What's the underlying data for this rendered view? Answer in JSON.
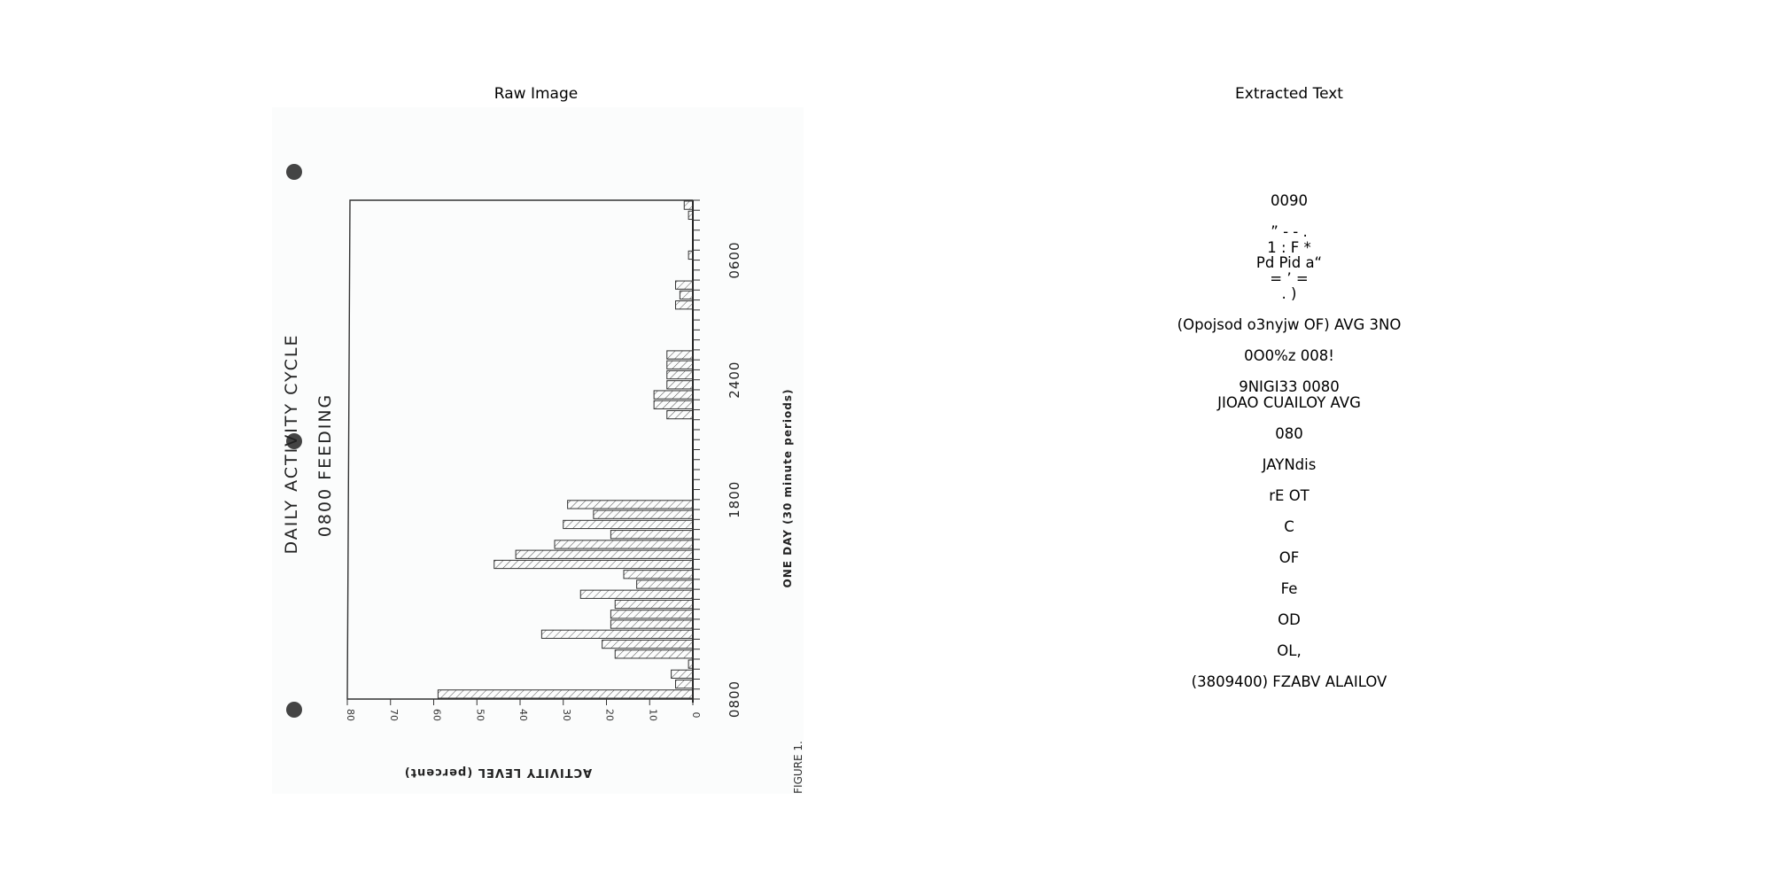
{
  "panels": {
    "left_title": "Raw Image",
    "right_title": "Extracted Text"
  },
  "scan": {
    "title_line1": "DAILY ACTIVITY CYCLE",
    "title_line2": "0800 FEEDING",
    "y_axis_label": "ACTIVITY LEVEL (percent)",
    "x_axis_label": "ONE DAY (30 minute periods)",
    "figure_label": "FIGURE 1.",
    "y_ticks": [
      "0",
      "10",
      "20",
      "30",
      "40",
      "50",
      "60",
      "70",
      "80"
    ],
    "x_ticks": [
      "0800",
      "1800",
      "2400",
      "0600"
    ]
  },
  "chart_data": {
    "type": "bar",
    "title": "DAILY ACTIVITY CYCLE 0800 FEEDING",
    "xlabel": "ONE DAY (30 minute periods)",
    "ylabel": "ACTIVITY LEVEL (percent)",
    "ylim": [
      0,
      80
    ],
    "x_tick_labels": [
      "0800",
      "1800",
      "2400",
      "0600"
    ],
    "values": [
      59,
      4,
      5,
      1,
      18,
      21,
      35,
      19,
      19,
      18,
      26,
      13,
      16,
      46,
      41,
      32,
      19,
      30,
      23,
      29,
      0,
      0,
      0,
      0,
      0,
      0,
      0,
      0,
      6,
      9,
      9,
      6,
      6,
      6,
      6,
      0,
      0,
      0,
      0,
      4,
      3,
      4,
      0,
      0,
      1,
      0,
      0,
      0,
      1,
      2
    ]
  },
  "ocr": {
    "lines": [
      "0090",
      "",
      "” - - .",
      "1 : F *",
      "Pd Pid a“",
      "= ’ =",
      ". )",
      "",
      "(Opojsod o3nyjw OF) AVG 3NO",
      "",
      "0O0%z 008!",
      "",
      "9NIGI33 0080",
      "JIOAO CUAILOY AVG",
      "",
      "080",
      "",
      "JAYNdis",
      "",
      "rE OT",
      "",
      "C",
      "",
      "OF",
      "",
      "Fe",
      "",
      "OD",
      "",
      "OL,",
      "",
      "(3809400) FZABV ALAILOV"
    ]
  }
}
